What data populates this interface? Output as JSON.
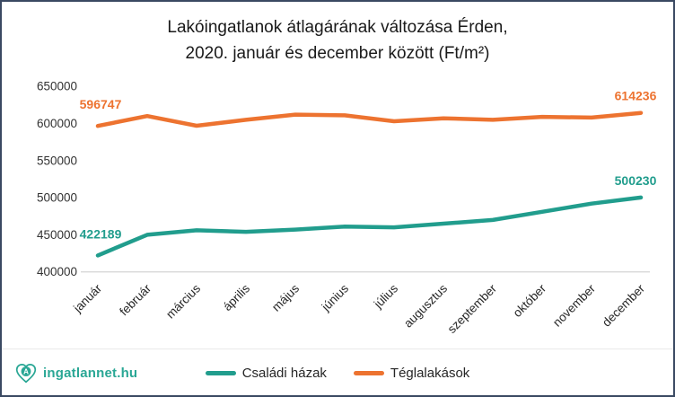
{
  "title": {
    "line1": "Lakóingatlanok átlagárának változása Érden,",
    "line2": "2020. január és december között (Ft/m²)"
  },
  "logo": {
    "text": "ingatlannet.hu",
    "icon": "heart-house-icon",
    "color": "#2aa795"
  },
  "legend": [
    {
      "label": "Családi házak",
      "color": "#219d8d"
    },
    {
      "label": "Téglalakások",
      "color": "#ed7330"
    }
  ],
  "colors": {
    "frame_border": "#3a4962",
    "axis_text": "#333333",
    "baseline": "#d9d9d9",
    "teal": "#219d8d",
    "orange": "#ed7330"
  },
  "chart_data": {
    "type": "line",
    "title": "Lakóingatlanok átlagárának változása Érden, 2020. január és december között (Ft/m²)",
    "categories": [
      "január",
      "február",
      "március",
      "április",
      "május",
      "június",
      "július",
      "augusztus",
      "szeptember",
      "október",
      "november",
      "december"
    ],
    "series": [
      {
        "name": "Családi házak",
        "color": "#219d8d",
        "values": [
          422189,
          450000,
          456000,
          454000,
          457000,
          461000,
          460000,
          465000,
          470000,
          481000,
          492000,
          500230
        ],
        "endpoint_labels": [
          "422189",
          "500230"
        ]
      },
      {
        "name": "Téglalakások",
        "color": "#ed7330",
        "values": [
          596747,
          610000,
          597000,
          605000,
          612000,
          611000,
          603000,
          607000,
          605000,
          609000,
          608000,
          614236
        ],
        "endpoint_labels": [
          "596747",
          "614236"
        ]
      }
    ],
    "ylim": [
      400000,
      650000
    ],
    "yticks": [
      "650000",
      "600000",
      "550000",
      "500000",
      "450000",
      "400000"
    ],
    "grid": "baseline-only",
    "legend_position": "bottom"
  }
}
